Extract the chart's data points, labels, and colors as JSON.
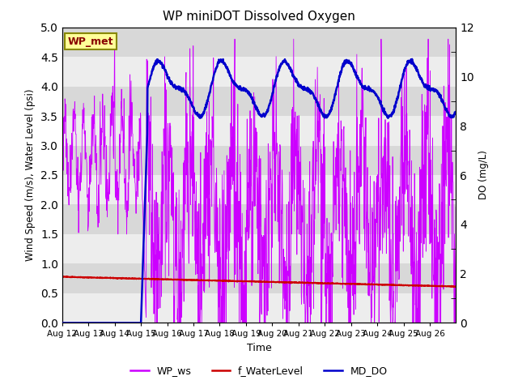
{
  "title": "WP miniDOT Dissolved Oxygen",
  "xlabel": "Time",
  "ylabel_left": "Wind Speed (m/s), Water Level (psi)",
  "ylabel_right": "DO (mg/L)",
  "ylim_left": [
    0,
    5.0
  ],
  "ylim_right": [
    0,
    12
  ],
  "yticks_left": [
    0.0,
    0.5,
    1.0,
    1.5,
    2.0,
    2.5,
    3.0,
    3.5,
    4.0,
    4.5,
    5.0
  ],
  "yticks_right": [
    0,
    2,
    4,
    6,
    8,
    10,
    12
  ],
  "wp_met_label": "WP_met",
  "legend_labels": [
    "WP_ws",
    "f_WaterLevel",
    "MD_DO"
  ],
  "legend_colors": [
    "#cc00ff",
    "#cc0000",
    "#0000cc"
  ],
  "wp_ws_color": "#cc00ff",
  "water_level_color": "#cc0000",
  "md_do_color": "#0000cc",
  "bg_color": "#d8d8d8",
  "grid_color": "#ffffff",
  "wp_met_box_color": "#ffff99",
  "wp_met_text_color": "#880000",
  "wp_met_border_color": "#888800",
  "fig_bg": "#ffffff"
}
